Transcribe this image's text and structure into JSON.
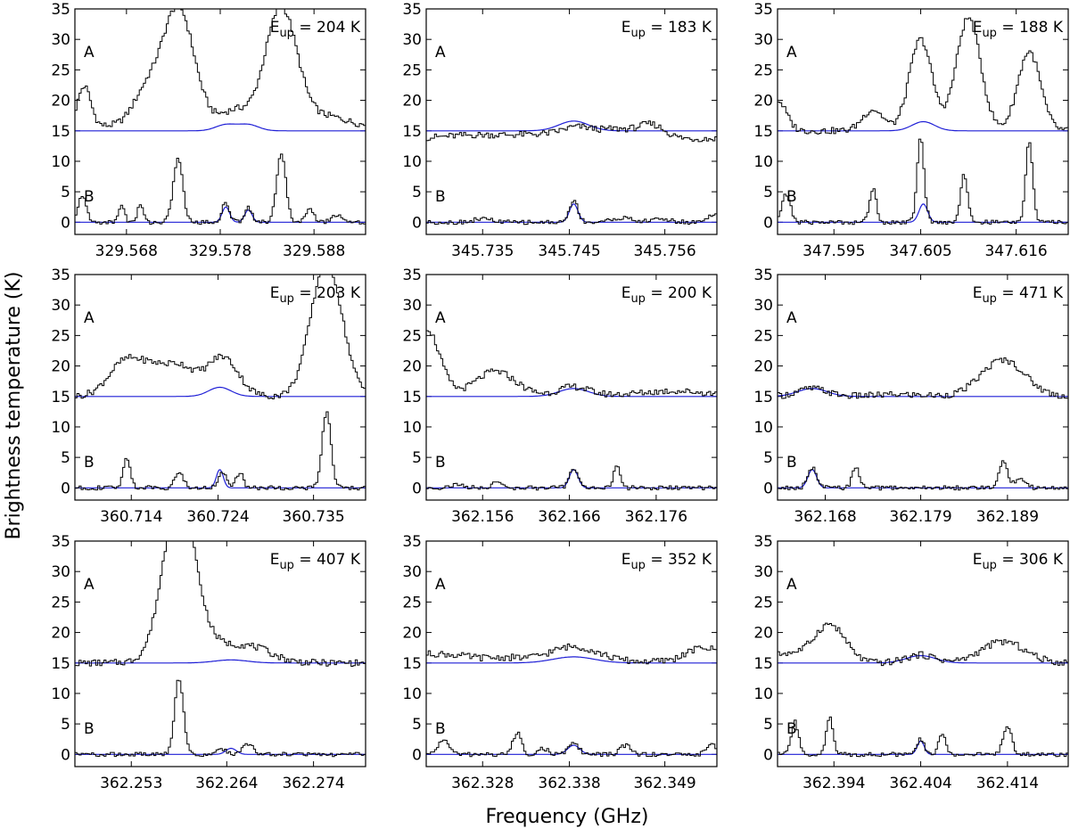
{
  "figure": {
    "ylabel": "Brightness temperature (K)",
    "xlabel": "Frequency (GHz)",
    "y_ticks": [
      "0",
      "5",
      "10",
      "15",
      "20",
      "25",
      "30",
      "35"
    ],
    "colors": {
      "observed": "#000000",
      "model": "#1f1fd6"
    }
  },
  "chart_data": [
    {
      "type": "line",
      "eup_prefix": "E",
      "eup_sub": "up",
      "eup_value": "= 204 K",
      "x_ticks": [
        "329.568",
        "329.578",
        "329.588"
      ],
      "xlim": [
        329.5625,
        329.5935
      ],
      "ylim": [
        -2,
        35
      ],
      "labels": {
        "A": "A",
        "B": "B"
      },
      "a_offset": 15,
      "A_peaks": [
        [
          329.5635,
          6.5,
          0.0007
        ],
        [
          329.5735,
          19.5,
          0.0017
        ],
        [
          329.5845,
          19.5,
          0.0017
        ],
        [
          329.57,
          5,
          0.0014
        ],
        [
          329.5795,
          2.5,
          0.0015
        ],
        [
          329.5895,
          1.5,
          0.002
        ]
      ],
      "A_base": 0.8,
      "A_model": [
        [
          329.5786,
          1.0,
          0.0011
        ],
        [
          329.581,
          1.0,
          0.0011
        ]
      ],
      "B_peaks": [
        [
          329.5633,
          4.5,
          0.0004
        ],
        [
          329.5675,
          3,
          0.0003
        ],
        [
          329.5695,
          3,
          0.0003
        ],
        [
          329.5735,
          10.5,
          0.0005
        ],
        [
          329.5786,
          3.2,
          0.0004
        ],
        [
          329.581,
          2.5,
          0.0004
        ],
        [
          329.5845,
          11,
          0.0005
        ],
        [
          329.5875,
          2,
          0.0005
        ],
        [
          329.5905,
          1.2,
          0.0006
        ]
      ],
      "B_model": [
        [
          329.5786,
          2.5,
          0.0004
        ],
        [
          329.581,
          2.0,
          0.0004
        ]
      ]
    },
    {
      "type": "line",
      "eup_prefix": "E",
      "eup_sub": "up",
      "eup_value": "= 183 K",
      "x_ticks": [
        "345.735",
        "345.745",
        "345.756"
      ],
      "xlim": [
        345.7285,
        345.762
      ],
      "ylim": [
        -2,
        35
      ],
      "labels": {
        "A": "A",
        "B": "B"
      },
      "a_offset": 15,
      "A_peaks": [
        [
          345.7345,
          0.6,
          0.004
        ],
        [
          345.742,
          0.6,
          0.003
        ],
        [
          345.746,
          1.6,
          0.0018
        ],
        [
          345.7505,
          1.5,
          0.002
        ],
        [
          345.7545,
          2.2,
          0.0015
        ]
      ],
      "A_base": -1.3,
      "A_model": [
        [
          345.7455,
          1.6,
          0.0017
        ]
      ],
      "B_peaks": [
        [
          345.7455,
          3.5,
          0.0005
        ],
        [
          345.735,
          0.6,
          0.001
        ],
        [
          345.751,
          0.7,
          0.0012
        ],
        [
          345.7555,
          0.6,
          0.001
        ],
        [
          345.7615,
          1.2,
          0.0007
        ]
      ],
      "B_model": [
        [
          345.7455,
          3.0,
          0.0005
        ]
      ]
    },
    {
      "type": "line",
      "eup_prefix": "E",
      "eup_sub": "up",
      "eup_value": "= 188 K",
      "x_ticks": [
        "347.595",
        "347.605",
        "347.616"
      ],
      "xlim": [
        347.5885,
        347.622
      ],
      "ylim": [
        -2,
        35
      ],
      "labels": {
        "A": "A",
        "B": "B"
      },
      "a_offset": 15,
      "A_peaks": [
        [
          347.5885,
          5,
          0.001
        ],
        [
          347.5995,
          3.5,
          0.0012
        ],
        [
          347.605,
          15,
          0.0013
        ],
        [
          347.6105,
          18.5,
          0.0014
        ],
        [
          347.6175,
          13,
          0.0013
        ]
      ],
      "A_base": 0,
      "A_model": [
        [
          347.6053,
          1.5,
          0.0013
        ]
      ],
      "B_peaks": [
        [
          347.5895,
          4.5,
          0.0005
        ],
        [
          347.5995,
          5.5,
          0.0004
        ],
        [
          347.605,
          14,
          0.0004
        ],
        [
          347.61,
          8,
          0.0004
        ],
        [
          347.6175,
          13.5,
          0.0004
        ]
      ],
      "B_model": [
        [
          347.6053,
          3.0,
          0.0005
        ]
      ]
    },
    {
      "type": "line",
      "eup_prefix": "E",
      "eup_sub": "up",
      "eup_value": "= 203 K",
      "x_ticks": [
        "360.714",
        "360.724",
        "360.735"
      ],
      "xlim": [
        360.7075,
        360.741
      ],
      "ylim": [
        -2,
        35
      ],
      "labels": {
        "A": "A",
        "B": "B"
      },
      "a_offset": 15,
      "A_peaks": [
        [
          360.7135,
          6,
          0.002
        ],
        [
          360.7195,
          5,
          0.0018
        ],
        [
          360.7245,
          6.5,
          0.0018
        ],
        [
          360.7365,
          22,
          0.0018
        ],
        [
          360.7165,
          2.5,
          0.0014
        ]
      ],
      "A_base": 0,
      "A_model": [
        [
          360.7242,
          1.5,
          0.0013
        ]
      ],
      "B_peaks": [
        [
          360.7135,
          5,
          0.0004
        ],
        [
          360.7195,
          2.5,
          0.0005
        ],
        [
          360.7245,
          2.5,
          0.0005
        ],
        [
          360.7265,
          2.5,
          0.0004
        ],
        [
          360.7365,
          12.5,
          0.0005
        ]
      ],
      "B_model": [
        [
          360.7242,
          3.0,
          0.0004
        ]
      ]
    },
    {
      "type": "line",
      "eup_prefix": "E",
      "eup_sub": "up",
      "eup_value": "= 200 K",
      "x_ticks": [
        "362.156",
        "362.166",
        "362.176"
      ],
      "xlim": [
        362.1495,
        362.183
      ],
      "ylim": [
        -2,
        35
      ],
      "labels": {
        "A": "A",
        "B": "B"
      },
      "a_offset": 15,
      "A_peaks": [
        [
          362.1495,
          11,
          0.0015
        ],
        [
          362.1575,
          3.8,
          0.0022
        ],
        [
          362.1665,
          1.3,
          0.0016
        ],
        [
          362.178,
          0.6,
          0.003
        ]
      ],
      "A_base": 0.3,
      "A_model": [
        [
          362.1665,
          1.3,
          0.0017
        ]
      ],
      "B_peaks": [
        [
          362.1665,
          3.3,
          0.0005
        ],
        [
          362.1575,
          1,
          0.0005
        ],
        [
          362.1715,
          3.5,
          0.0004
        ],
        [
          362.153,
          0.5,
          0.0008
        ]
      ],
      "B_model": [
        [
          362.1665,
          3.0,
          0.0005
        ]
      ]
    },
    {
      "type": "line",
      "eup_prefix": "E",
      "eup_sub": "up",
      "eup_value": "= 471 K",
      "x_ticks": [
        "362.168",
        "362.179",
        "362.189"
      ],
      "xlim": [
        362.1625,
        362.196
      ],
      "ylim": [
        -2,
        35
      ],
      "labels": {
        "A": "A",
        "B": "B"
      },
      "a_offset": 15,
      "A_peaks": [
        [
          362.1665,
          1.3,
          0.0017
        ],
        [
          362.1885,
          6,
          0.0025
        ],
        [
          362.1765,
          0.3,
          0.003
        ]
      ],
      "A_base": 0,
      "A_model": [
        [
          362.1665,
          1.3,
          0.0017
        ]
      ],
      "B_peaks": [
        [
          362.1665,
          3.3,
          0.0005
        ],
        [
          362.1715,
          3.5,
          0.0004
        ],
        [
          362.1885,
          4.5,
          0.0005
        ],
        [
          362.1905,
          1.5,
          0.0006
        ]
      ],
      "B_model": [
        [
          362.1665,
          3.0,
          0.0005
        ]
      ]
    },
    {
      "type": "line",
      "eup_prefix": "E",
      "eup_sub": "up",
      "eup_value": "= 407 K",
      "x_ticks": [
        "362.253",
        "362.264",
        "362.274"
      ],
      "xlim": [
        362.2465,
        362.28
      ],
      "ylim": [
        -2,
        35
      ],
      "labels": {
        "A": "A",
        "B": "B"
      },
      "a_offset": 15,
      "A_peaks": [
        [
          362.2585,
          26,
          0.0018
        ],
        [
          362.2625,
          3,
          0.004
        ],
        [
          362.2675,
          1.2,
          0.002
        ]
      ],
      "A_base": 0,
      "A_model": [
        [
          362.2645,
          0.5,
          0.0019
        ]
      ],
      "B_peaks": [
        [
          362.2585,
          12.5,
          0.0005
        ],
        [
          362.2665,
          1.8,
          0.0006
        ],
        [
          362.2635,
          0.8,
          0.0006
        ]
      ],
      "B_model": [
        [
          362.2645,
          1.0,
          0.0006
        ]
      ]
    },
    {
      "type": "line",
      "eup_prefix": "E",
      "eup_sub": "up",
      "eup_value": "= 352 K",
      "x_ticks": [
        "362.328",
        "362.338",
        "362.349"
      ],
      "xlim": [
        362.3215,
        362.355
      ],
      "ylim": [
        -2,
        35
      ],
      "labels": {
        "A": "A",
        "B": "B"
      },
      "a_offset": 15,
      "A_peaks": [
        [
          362.3225,
          1.3,
          0.004
        ],
        [
          362.3385,
          2.5,
          0.0028
        ],
        [
          362.3535,
          2.3,
          0.002
        ],
        [
          362.331,
          0.5,
          0.002
        ]
      ],
      "A_base": 0.2,
      "A_model": [
        [
          362.3385,
          1.0,
          0.0024
        ]
      ],
      "B_peaks": [
        [
          362.3235,
          2.5,
          0.0006
        ],
        [
          362.332,
          3.5,
          0.0005
        ],
        [
          362.3385,
          1.8,
          0.0006
        ],
        [
          362.3445,
          1.5,
          0.0006
        ],
        [
          362.3545,
          1.5,
          0.0006
        ],
        [
          362.335,
          1,
          0.0005
        ]
      ],
      "B_model": [
        [
          362.3385,
          1.5,
          0.0007
        ]
      ]
    },
    {
      "type": "line",
      "eup_prefix": "E",
      "eup_sub": "up",
      "eup_value": "= 306 K",
      "x_ticks": [
        "362.394",
        "362.404",
        "362.414"
      ],
      "xlim": [
        362.3875,
        362.421
      ],
      "ylim": [
        -2,
        35
      ],
      "labels": {
        "A": "A",
        "B": "B"
      },
      "a_offset": 15,
      "A_peaks": [
        [
          362.3935,
          6.3,
          0.0018
        ],
        [
          362.404,
          1.3,
          0.0017
        ],
        [
          362.4135,
          3.5,
          0.0025
        ],
        [
          362.3885,
          1.5,
          0.002
        ]
      ],
      "A_base": 0,
      "A_model": [
        [
          362.404,
          1.2,
          0.0017
        ]
      ],
      "B_peaks": [
        [
          362.3895,
          5.5,
          0.0004
        ],
        [
          362.3935,
          6,
          0.0004
        ],
        [
          362.404,
          2.5,
          0.0004
        ],
        [
          362.4065,
          3.5,
          0.0004
        ],
        [
          362.414,
          4.5,
          0.0005
        ]
      ],
      "B_model": [
        [
          362.404,
          2.2,
          0.0004
        ]
      ]
    }
  ]
}
